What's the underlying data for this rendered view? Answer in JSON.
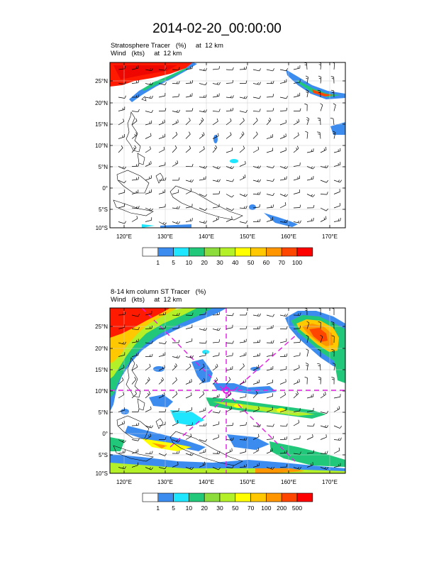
{
  "page_title": "2014-02-20_00:00:00",
  "panels": [
    {
      "field_label": "Stratosphere Tracer   (%)     at  12 km",
      "wind_label": "Wind   (kts)     at  12 km",
      "lon_ticks": [
        "120°E",
        "130°E",
        "140°E",
        "150°E",
        "160°E",
        "170°E"
      ],
      "lat_ticks": [
        "25°N",
        "20°N",
        "15°N",
        "10°N",
        "5°N",
        "0°",
        "5°S",
        "10°S"
      ],
      "colorbar_labels": [
        "1",
        "5",
        "10",
        "20",
        "30",
        "40",
        "50",
        "60",
        "70",
        "100"
      ],
      "colors": [
        "#ffffff",
        "#3c8cf0",
        "#1ee6ff",
        "#22c87a",
        "#8cdc3c",
        "#b4f028",
        "#ffff00",
        "#ffc800",
        "#ff9600",
        "#ff4600",
        "#ff0000"
      ]
    },
    {
      "field_label": "8-14 km column ST Tracer   (%)",
      "wind_label": "Wind   (kts)     at  12 km",
      "lon_ticks": [
        "120°E",
        "130°E",
        "140°E",
        "150°E",
        "160°E",
        "170°E"
      ],
      "lat_ticks": [
        "25°N",
        "20°N",
        "15°N",
        "10°N",
        "5°N",
        "0°",
        "5°S",
        "10°S"
      ],
      "colorbar_labels": [
        "1",
        "5",
        "10",
        "20",
        "30",
        "50",
        "70",
        "100",
        "200",
        "500"
      ],
      "colors": [
        "#ffffff",
        "#3c8cf0",
        "#1ee6ff",
        "#22c87a",
        "#8cdc3c",
        "#b4f028",
        "#ffff00",
        "#ffc800",
        "#ff9600",
        "#ff4600",
        "#ff0000"
      ],
      "cross_section_color": "#e619e6"
    }
  ]
}
